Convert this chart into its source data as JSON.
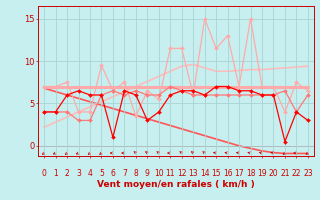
{
  "x": [
    0,
    1,
    2,
    3,
    4,
    5,
    6,
    7,
    8,
    9,
    10,
    11,
    12,
    13,
    14,
    15,
    16,
    17,
    18,
    19,
    20,
    21,
    22,
    23
  ],
  "xlabel": "Vent moyen/en rafales ( km/h )",
  "yticks": [
    0,
    5,
    10,
    15
  ],
  "xlim": [
    -0.5,
    23.5
  ],
  "ylim": [
    -1.2,
    16.5
  ],
  "bg_color": "#c8efef",
  "grid_color": "#aad4d4",
  "axis_color": "#cc0000",
  "tick_fontsize": 5.5,
  "label_fontsize": 6.5,
  "line_configs": [
    {
      "y": [
        7.0,
        7.0,
        7.0,
        7.0,
        7.0,
        7.0,
        7.0,
        7.0,
        7.0,
        7.0,
        7.0,
        7.0,
        7.0,
        7.0,
        7.0,
        7.0,
        7.0,
        7.0,
        7.0,
        7.0,
        7.0,
        7.0,
        7.0,
        7.0
      ],
      "color": "#ffaaaa",
      "lw": 2.2,
      "marker": null,
      "ms": 0,
      "zorder": 2
    },
    {
      "y": [
        2.2,
        2.8,
        3.4,
        4.0,
        4.6,
        5.2,
        5.8,
        6.4,
        7.0,
        7.6,
        8.2,
        8.8,
        9.4,
        9.6,
        9.2,
        8.8,
        8.8,
        8.9,
        9.0,
        9.0,
        9.1,
        9.2,
        9.3,
        9.4
      ],
      "color": "#ffbbbb",
      "lw": 1.2,
      "marker": null,
      "ms": 0,
      "zorder": 1
    },
    {
      "y": [
        6.8,
        6.4,
        6.0,
        5.6,
        5.2,
        4.8,
        4.4,
        4.0,
        3.6,
        3.2,
        2.8,
        2.4,
        2.0,
        1.6,
        1.2,
        0.8,
        0.4,
        0.0,
        -0.3,
        -0.6,
        -0.8,
        -0.9,
        -0.9,
        -0.9
      ],
      "color": "#ff5555",
      "lw": 1.2,
      "marker": null,
      "ms": 0,
      "zorder": 1
    },
    {
      "y": [
        7.0,
        7.0,
        7.5,
        4.0,
        4.0,
        9.5,
        6.5,
        7.5,
        3.5,
        6.5,
        5.5,
        11.5,
        11.5,
        6.0,
        15.0,
        11.5,
        13.0,
        7.0,
        15.0,
        7.0,
        7.0,
        4.0,
        7.5,
        6.5
      ],
      "color": "#ffaaaa",
      "lw": 0.9,
      "marker": "D",
      "ms": 2.0,
      "zorder": 3
    },
    {
      "y": [
        4.0,
        4.0,
        4.0,
        3.0,
        3.0,
        6.0,
        6.5,
        6.0,
        6.5,
        6.0,
        6.0,
        7.0,
        6.5,
        6.0,
        6.0,
        6.0,
        6.0,
        6.0,
        6.0,
        6.0,
        6.0,
        6.5,
        4.0,
        6.0
      ],
      "color": "#ff7777",
      "lw": 0.9,
      "marker": "D",
      "ms": 2.0,
      "zorder": 3
    },
    {
      "y": [
        4.0,
        4.0,
        6.0,
        6.5,
        6.0,
        6.0,
        1.0,
        6.5,
        6.0,
        3.0,
        4.0,
        6.0,
        6.5,
        6.5,
        6.0,
        7.0,
        7.0,
        6.5,
        6.5,
        6.0,
        6.0,
        0.5,
        4.0,
        3.0
      ],
      "color": "#ff0000",
      "lw": 0.9,
      "marker": "D",
      "ms": 2.0,
      "zorder": 4
    }
  ],
  "arrow_symbol": "←",
  "arrow_angles": [
    225,
    210,
    225,
    210,
    225,
    225,
    180,
    180,
    135,
    135,
    135,
    180,
    135,
    135,
    135,
    165,
    165,
    165,
    165,
    165,
    165,
    225,
    180,
    225
  ]
}
